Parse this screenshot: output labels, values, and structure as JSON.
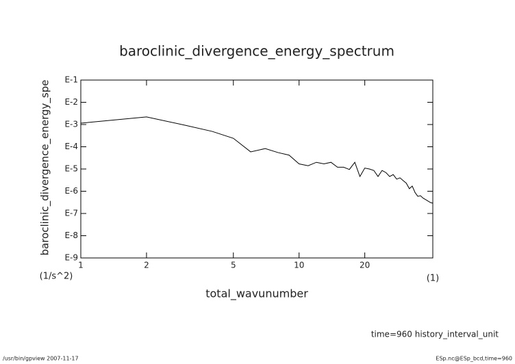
{
  "chart_data": {
    "type": "line",
    "title": "baroclinic_divergence_energy_spectrum",
    "y_label": "baroclinic_divergence_energy_spe",
    "y_unit": "(1/s^2)",
    "x_label": "total_wavunumber",
    "x_unit": "(1)",
    "annotation": "time=960 history_interval_unit",
    "footer_left": "/usr/bin/gpview  2007-11-17",
    "footer_right": "ESp.nc@ESp_bcd,time=960",
    "x_log": true,
    "y_log": true,
    "xlim": [
      1,
      41
    ],
    "ylim": [
      1e-09,
      0.1
    ],
    "xticks": [
      1,
      2,
      5,
      10,
      20
    ],
    "yticks": [
      {
        "value": 0.1,
        "label": "E-1"
      },
      {
        "value": 0.01,
        "label": "E-2"
      },
      {
        "value": 0.001,
        "label": "E-3"
      },
      {
        "value": 0.0001,
        "label": "E-4"
      },
      {
        "value": 1e-05,
        "label": "E-5"
      },
      {
        "value": 1e-06,
        "label": "E-6"
      },
      {
        "value": 1e-07,
        "label": "E-7"
      },
      {
        "value": 1e-08,
        "label": "E-8"
      },
      {
        "value": 1e-09,
        "label": "E-9"
      }
    ],
    "x": [
      1,
      2,
      3,
      4,
      5,
      6,
      7,
      8,
      9,
      10,
      11,
      12,
      13,
      14,
      15,
      16,
      17,
      18,
      19,
      20,
      21,
      22,
      23,
      24,
      25,
      26,
      27,
      28,
      29,
      30,
      31,
      32,
      33,
      34,
      35,
      36,
      37,
      38,
      39,
      40,
      41
    ],
    "series": [
      {
        "color": "#000000",
        "values": [
          0.00115,
          0.0022,
          0.00093,
          0.00049,
          0.00024,
          5.9e-05,
          8.3e-05,
          5.5e-05,
          4.2e-05,
          1.7e-05,
          1.4e-05,
          2e-05,
          1.7e-05,
          2e-05,
          1.2e-05,
          1.2e-05,
          9.5e-06,
          2e-05,
          4.6e-06,
          1.1e-05,
          1e-05,
          8.6e-06,
          4.6e-06,
          8.6e-06,
          6.9e-06,
          4.6e-06,
          5.6e-06,
          3.5e-06,
          4e-06,
          3e-06,
          2.3e-06,
          1.3e-06,
          1.7e-06,
          8.7e-07,
          5.9e-07,
          6.3e-07,
          4.9e-07,
          4.2e-07,
          3.6e-07,
          3.1e-07,
          2.9e-07
        ]
      }
    ]
  }
}
